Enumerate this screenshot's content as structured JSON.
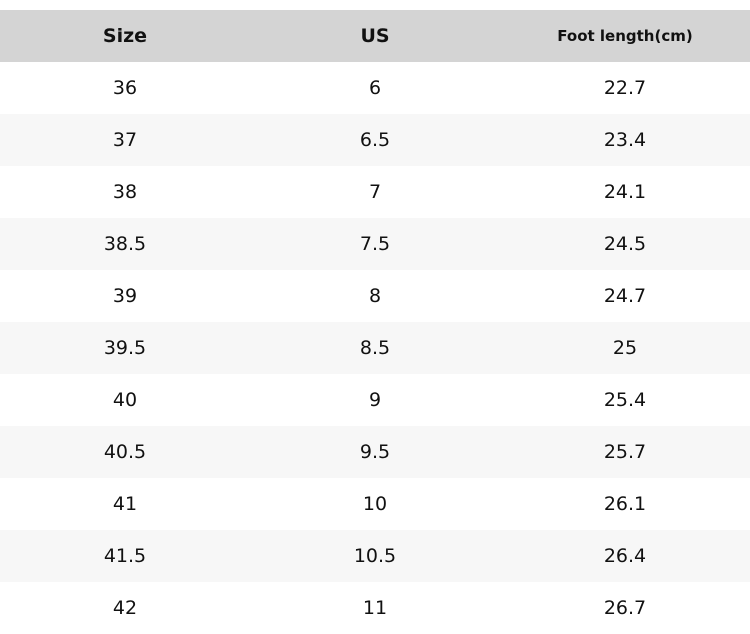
{
  "table": {
    "header": [
      "Size",
      "US",
      "Foot length(cm)"
    ],
    "rows": [
      [
        "36",
        "6",
        "22.7"
      ],
      [
        "37",
        "6.5",
        "23.4"
      ],
      [
        "38",
        "7",
        "24.1"
      ],
      [
        "38.5",
        "7.5",
        "24.5"
      ],
      [
        "39",
        "8",
        "24.7"
      ],
      [
        "39.5",
        "8.5",
        "25"
      ],
      [
        "40",
        "9",
        "25.4"
      ],
      [
        "40.5",
        "9.5",
        "25.7"
      ],
      [
        "41",
        "10",
        "26.1"
      ],
      [
        "41.5",
        "10.5",
        "26.4"
      ],
      [
        "42",
        "11",
        "26.7"
      ]
    ]
  }
}
